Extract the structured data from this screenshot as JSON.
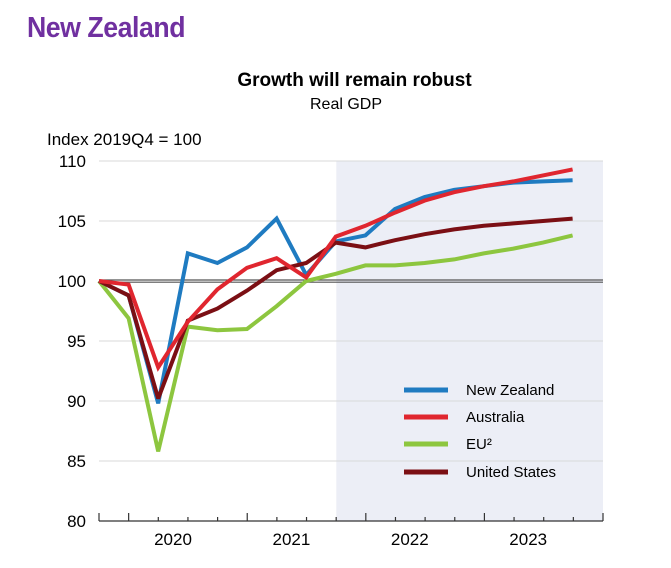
{
  "header": {
    "country": "New Zealand"
  },
  "chart_data": {
    "type": "line",
    "title": "Growth will remain robust",
    "subtitle": "Real GDP",
    "ylabel": "Index 2019Q4 = 100",
    "xlabel": "",
    "ylim": [
      80,
      110
    ],
    "yticks": [
      80,
      85,
      90,
      95,
      100,
      105,
      110
    ],
    "grid": true,
    "baseline": 100,
    "x": [
      "2019Q4",
      "2020Q1",
      "2020Q2",
      "2020Q3",
      "2020Q4",
      "2021Q1",
      "2021Q2",
      "2021Q3",
      "2021Q4",
      "2022Q1",
      "2022Q2",
      "2022Q3",
      "2022Q4",
      "2023Q1",
      "2023Q2",
      "2023Q3",
      "2023Q4"
    ],
    "x_year_labels": [
      {
        "label": "2020",
        "quarters": [
          "2020Q1",
          "2020Q4"
        ]
      },
      {
        "label": "2021",
        "quarters": [
          "2021Q1",
          "2021Q4"
        ]
      },
      {
        "label": "2022",
        "quarters": [
          "2022Q1",
          "2022Q4"
        ]
      },
      {
        "label": "2023",
        "quarters": [
          "2023Q1",
          "2023Q4"
        ]
      }
    ],
    "projection_start": "2021Q4",
    "projection_shading_color": "#eceef6",
    "legend_position": "bottom-right",
    "series": [
      {
        "name": "New Zealand",
        "color": "#1f7bc1",
        "values": [
          100,
          98.8,
          89.8,
          102.3,
          101.5,
          102.8,
          105.2,
          100.5,
          103.3,
          103.8,
          106.0,
          107.0,
          107.6,
          107.9,
          108.2,
          108.3,
          108.4
        ]
      },
      {
        "name": "Australia",
        "color": "#e0262f",
        "values": [
          100,
          99.7,
          92.8,
          96.6,
          99.3,
          101.1,
          101.9,
          100.3,
          103.7,
          104.6,
          105.7,
          106.7,
          107.4,
          107.9,
          108.3,
          108.8,
          109.3
        ]
      },
      {
        "name": "EU²",
        "color": "#8dc63f",
        "values": [
          100,
          96.9,
          85.8,
          96.2,
          95.9,
          96.0,
          97.9,
          100.0,
          100.6,
          101.3,
          101.3,
          101.5,
          101.8,
          102.3,
          102.7,
          103.2,
          103.8
        ]
      },
      {
        "name": "United States",
        "color": "#7b0f14",
        "values": [
          100,
          98.8,
          90.2,
          96.7,
          97.7,
          99.2,
          100.9,
          101.5,
          103.2,
          102.8,
          103.4,
          103.9,
          104.3,
          104.6,
          104.8,
          105.0,
          105.2
        ]
      }
    ]
  }
}
